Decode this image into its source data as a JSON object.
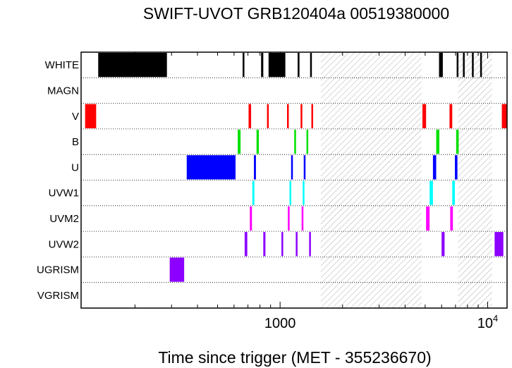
{
  "chart_data": {
    "type": "timeline",
    "title": "SWIFT-UVOT GRB120404a 00519380000",
    "xlabel": "Time since trigger (MET - 355236670)",
    "xscale": "log",
    "xlim": [
      110,
      12400
    ],
    "xticks": [
      {
        "value": 1000,
        "label": "1000",
        "sup": ""
      },
      {
        "value": 10000,
        "label": "10",
        "sup": "4"
      }
    ],
    "filters": [
      "WHITE",
      "MAGN",
      "V",
      "B",
      "U",
      "UVW1",
      "UVM2",
      "UVW2",
      "UGRISM",
      "VGRISM"
    ],
    "colors": {
      "WHITE": "#000000",
      "V": "#ff0000",
      "B": "#00e000",
      "U": "#0000ff",
      "UVW1": "#00ffff",
      "UVM2": "#ff00ff",
      "UVW2": "#8c00ff",
      "UGRISM": "#8c00ff"
    },
    "gaps": [
      [
        1570,
        4800
      ],
      [
        7200,
        10500
      ]
    ],
    "exposures": {
      "WHITE": [
        [
          133,
          285
        ],
        [
          660,
          673
        ],
        [
          810,
          830
        ],
        [
          880,
          1060
        ],
        [
          1215,
          1240
        ],
        [
          1395,
          1410
        ],
        [
          5830,
          6080
        ],
        [
          7090,
          7140
        ],
        [
          7600,
          7620
        ],
        [
          8400,
          8420
        ],
        [
          9200,
          9220
        ]
      ],
      "MAGN": [],
      "V": [
        [
          115,
          130
        ],
        [
          705,
          725
        ],
        [
          865,
          880
        ],
        [
          1080,
          1095
        ],
        [
          1255,
          1270
        ],
        [
          1415,
          1430
        ],
        [
          4850,
          5050
        ],
        [
          6550,
          6750
        ],
        [
          11700,
          12400
        ]
      ],
      "B": [
        [
          625,
          645
        ],
        [
          770,
          790
        ],
        [
          1170,
          1190
        ],
        [
          1340,
          1360
        ],
        [
          5650,
          5850
        ],
        [
          7050,
          7250
        ]
      ],
      "U": [
        [
          355,
          610
        ],
        [
          748,
          765
        ],
        [
          1130,
          1150
        ],
        [
          1300,
          1320
        ],
        [
          5450,
          5650
        ],
        [
          6950,
          7150
        ]
      ],
      "UVW1": [
        [
          735,
          752
        ],
        [
          1110,
          1128
        ],
        [
          1285,
          1302
        ],
        [
          5250,
          5450
        ],
        [
          6750,
          6950
        ]
      ],
      "UVM2": [
        [
          715,
          732
        ],
        [
          1090,
          1108
        ],
        [
          1270,
          1287
        ],
        [
          5050,
          5250
        ],
        [
          6600,
          6800
        ]
      ],
      "UVW2": [
        [
          675,
          695
        ],
        [
          830,
          850
        ],
        [
          1015,
          1035
        ],
        [
          1190,
          1210
        ],
        [
          1380,
          1400
        ],
        [
          6000,
          6200
        ],
        [
          10800,
          11900
        ]
      ],
      "UGRISM": [
        [
          294,
          345
        ]
      ],
      "VGRISM": []
    }
  }
}
